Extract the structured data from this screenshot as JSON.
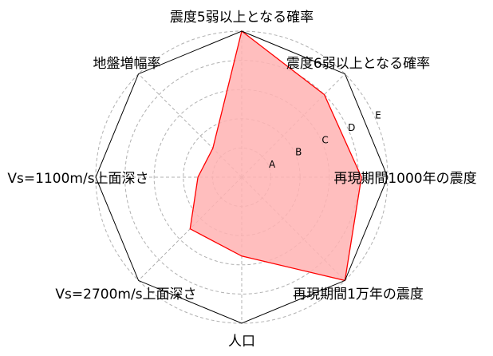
{
  "chart_data": {
    "type": "radar",
    "title": "",
    "axes": [
      "震度5弱以上となる確率",
      "震度6弱以上となる確率",
      "再現期間1000年の震度",
      "再現期間1万年の震度",
      "人口",
      "Vs=2700m/s上面深さ",
      "Vs=1100m/s上面深さ",
      "地盤増幅率"
    ],
    "rings": [
      "A",
      "B",
      "C",
      "D",
      "E"
    ],
    "range": [
      0,
      5
    ],
    "grid": true,
    "series": [
      {
        "name": "",
        "values": [
          5.0,
          4.0,
          4.1,
          5.0,
          2.7,
          2.5,
          1.5,
          1.4
        ],
        "line_color": "#ff0000",
        "fill_color": "#ffb3b3"
      }
    ]
  }
}
